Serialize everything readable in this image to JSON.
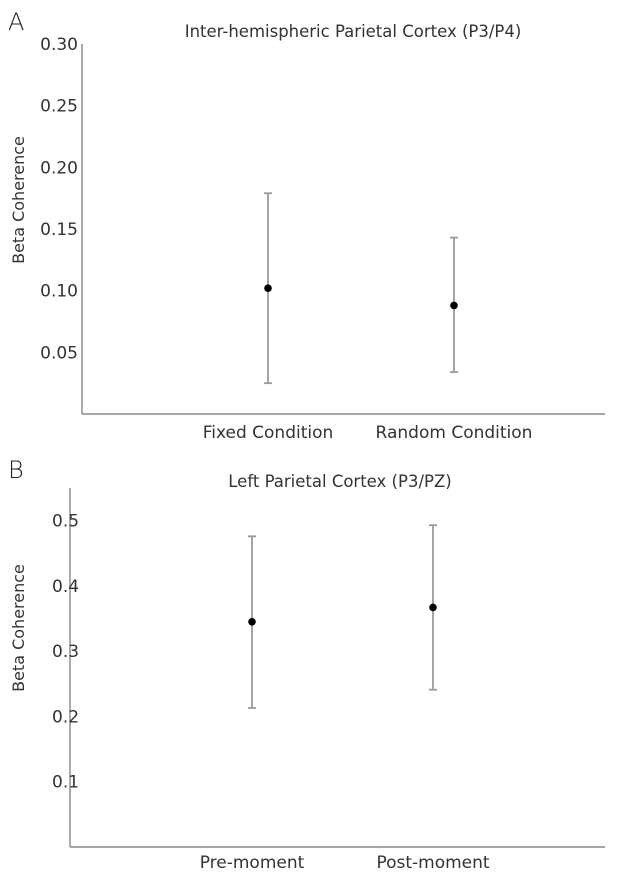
{
  "chart_data": [
    {
      "panel": "A",
      "type": "scatter",
      "title": "Inter-hemispheric Parietal Cortex (P3/P4)",
      "ylabel": "Beta Coherence",
      "xlabel": "",
      "categories": [
        "Fixed Condition",
        "Random Condition"
      ],
      "values": [
        0.102,
        0.088
      ],
      "error_low": [
        0.025,
        0.034
      ],
      "error_high": [
        0.179,
        0.143
      ],
      "ylim": [
        0.0,
        0.3
      ],
      "yticks": [
        "0.30",
        "0.25",
        "0.20",
        "0.15",
        "0.10",
        "0.05"
      ],
      "ytick_values": [
        0.3,
        0.25,
        0.2,
        0.15,
        0.1,
        0.05
      ],
      "grid": false
    },
    {
      "panel": "B",
      "type": "scatter",
      "title": "Left Parietal Cortex (P3/PZ)",
      "ylabel": "Beta Coherence",
      "xlabel": "",
      "categories": [
        "Pre-moment",
        "Post-moment"
      ],
      "values": [
        0.345,
        0.367
      ],
      "error_low": [
        0.213,
        0.241
      ],
      "error_high": [
        0.476,
        0.493
      ],
      "ylim": [
        0.0,
        0.55
      ],
      "yticks": [
        "0.5",
        "0.4",
        "0.3",
        "0.2",
        "0.1"
      ],
      "ytick_values": [
        0.5,
        0.4,
        0.3,
        0.2,
        0.1
      ],
      "grid": false
    }
  ]
}
